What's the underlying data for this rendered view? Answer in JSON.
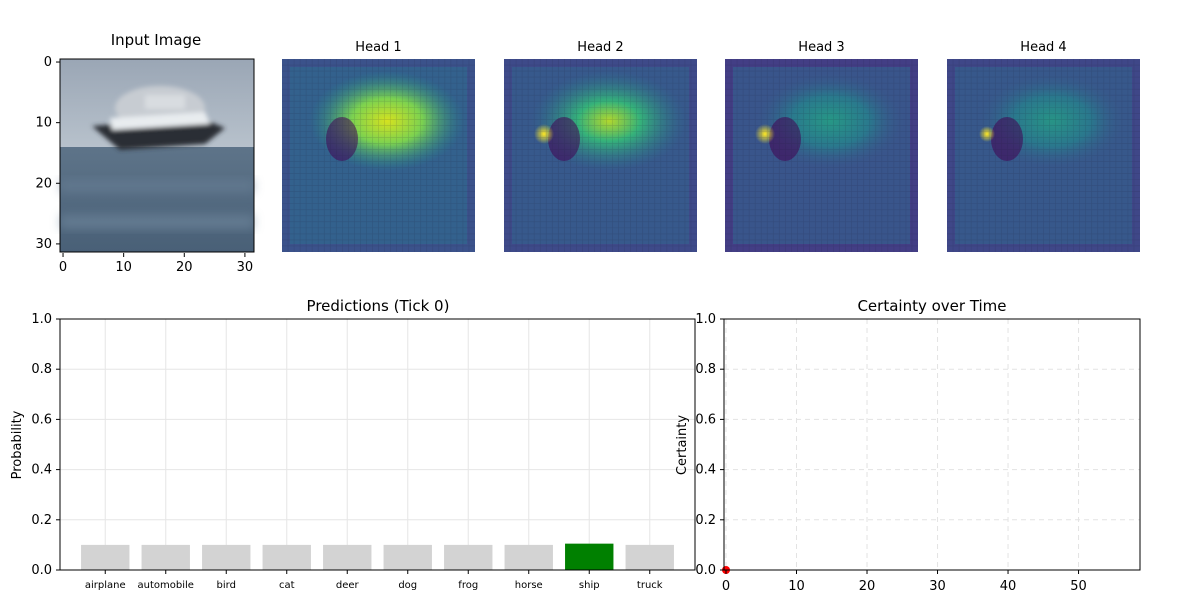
{
  "figure": {
    "input_image": {
      "title": "Input Image",
      "x_ticks": [
        "0",
        "10",
        "20",
        "30"
      ],
      "y_ticks": [
        "0",
        "10",
        "20",
        "30"
      ]
    },
    "heads": [
      {
        "title": "Head 1"
      },
      {
        "title": "Head 2"
      },
      {
        "title": "Head 3"
      },
      {
        "title": "Head 4"
      }
    ]
  },
  "chart_data": [
    {
      "type": "bar",
      "title": "Predictions (Tick 0)",
      "xlabel": "",
      "ylabel": "Probability",
      "ylim": [
        0,
        1
      ],
      "y_ticks": [
        "0.0",
        "0.2",
        "0.4",
        "0.6",
        "0.8",
        "1.0"
      ],
      "grid": true,
      "categories": [
        "airplane",
        "automobile",
        "bird",
        "cat",
        "deer",
        "dog",
        "frog",
        "horse",
        "ship",
        "truck"
      ],
      "values": [
        0.1,
        0.1,
        0.1,
        0.1,
        0.1,
        0.1,
        0.1,
        0.1,
        0.105,
        0.1
      ],
      "highlight_category": "ship",
      "colors": {
        "default": "#d3d3d3",
        "highlight": "#008000"
      }
    },
    {
      "type": "line",
      "title": "Certainty over Time",
      "xlabel": "",
      "ylabel": "Certainty",
      "xlim": [
        0,
        59
      ],
      "ylim": [
        0,
        1
      ],
      "x_ticks": [
        "0",
        "10",
        "20",
        "30",
        "40",
        "50"
      ],
      "y_ticks": [
        "0.0",
        "0.2",
        "0.4",
        "0.6",
        "0.8",
        "1.0"
      ],
      "grid": "dashed",
      "series": [
        {
          "x": [
            0
          ],
          "y": [
            0.0
          ],
          "color": "#ff0000"
        }
      ]
    }
  ]
}
